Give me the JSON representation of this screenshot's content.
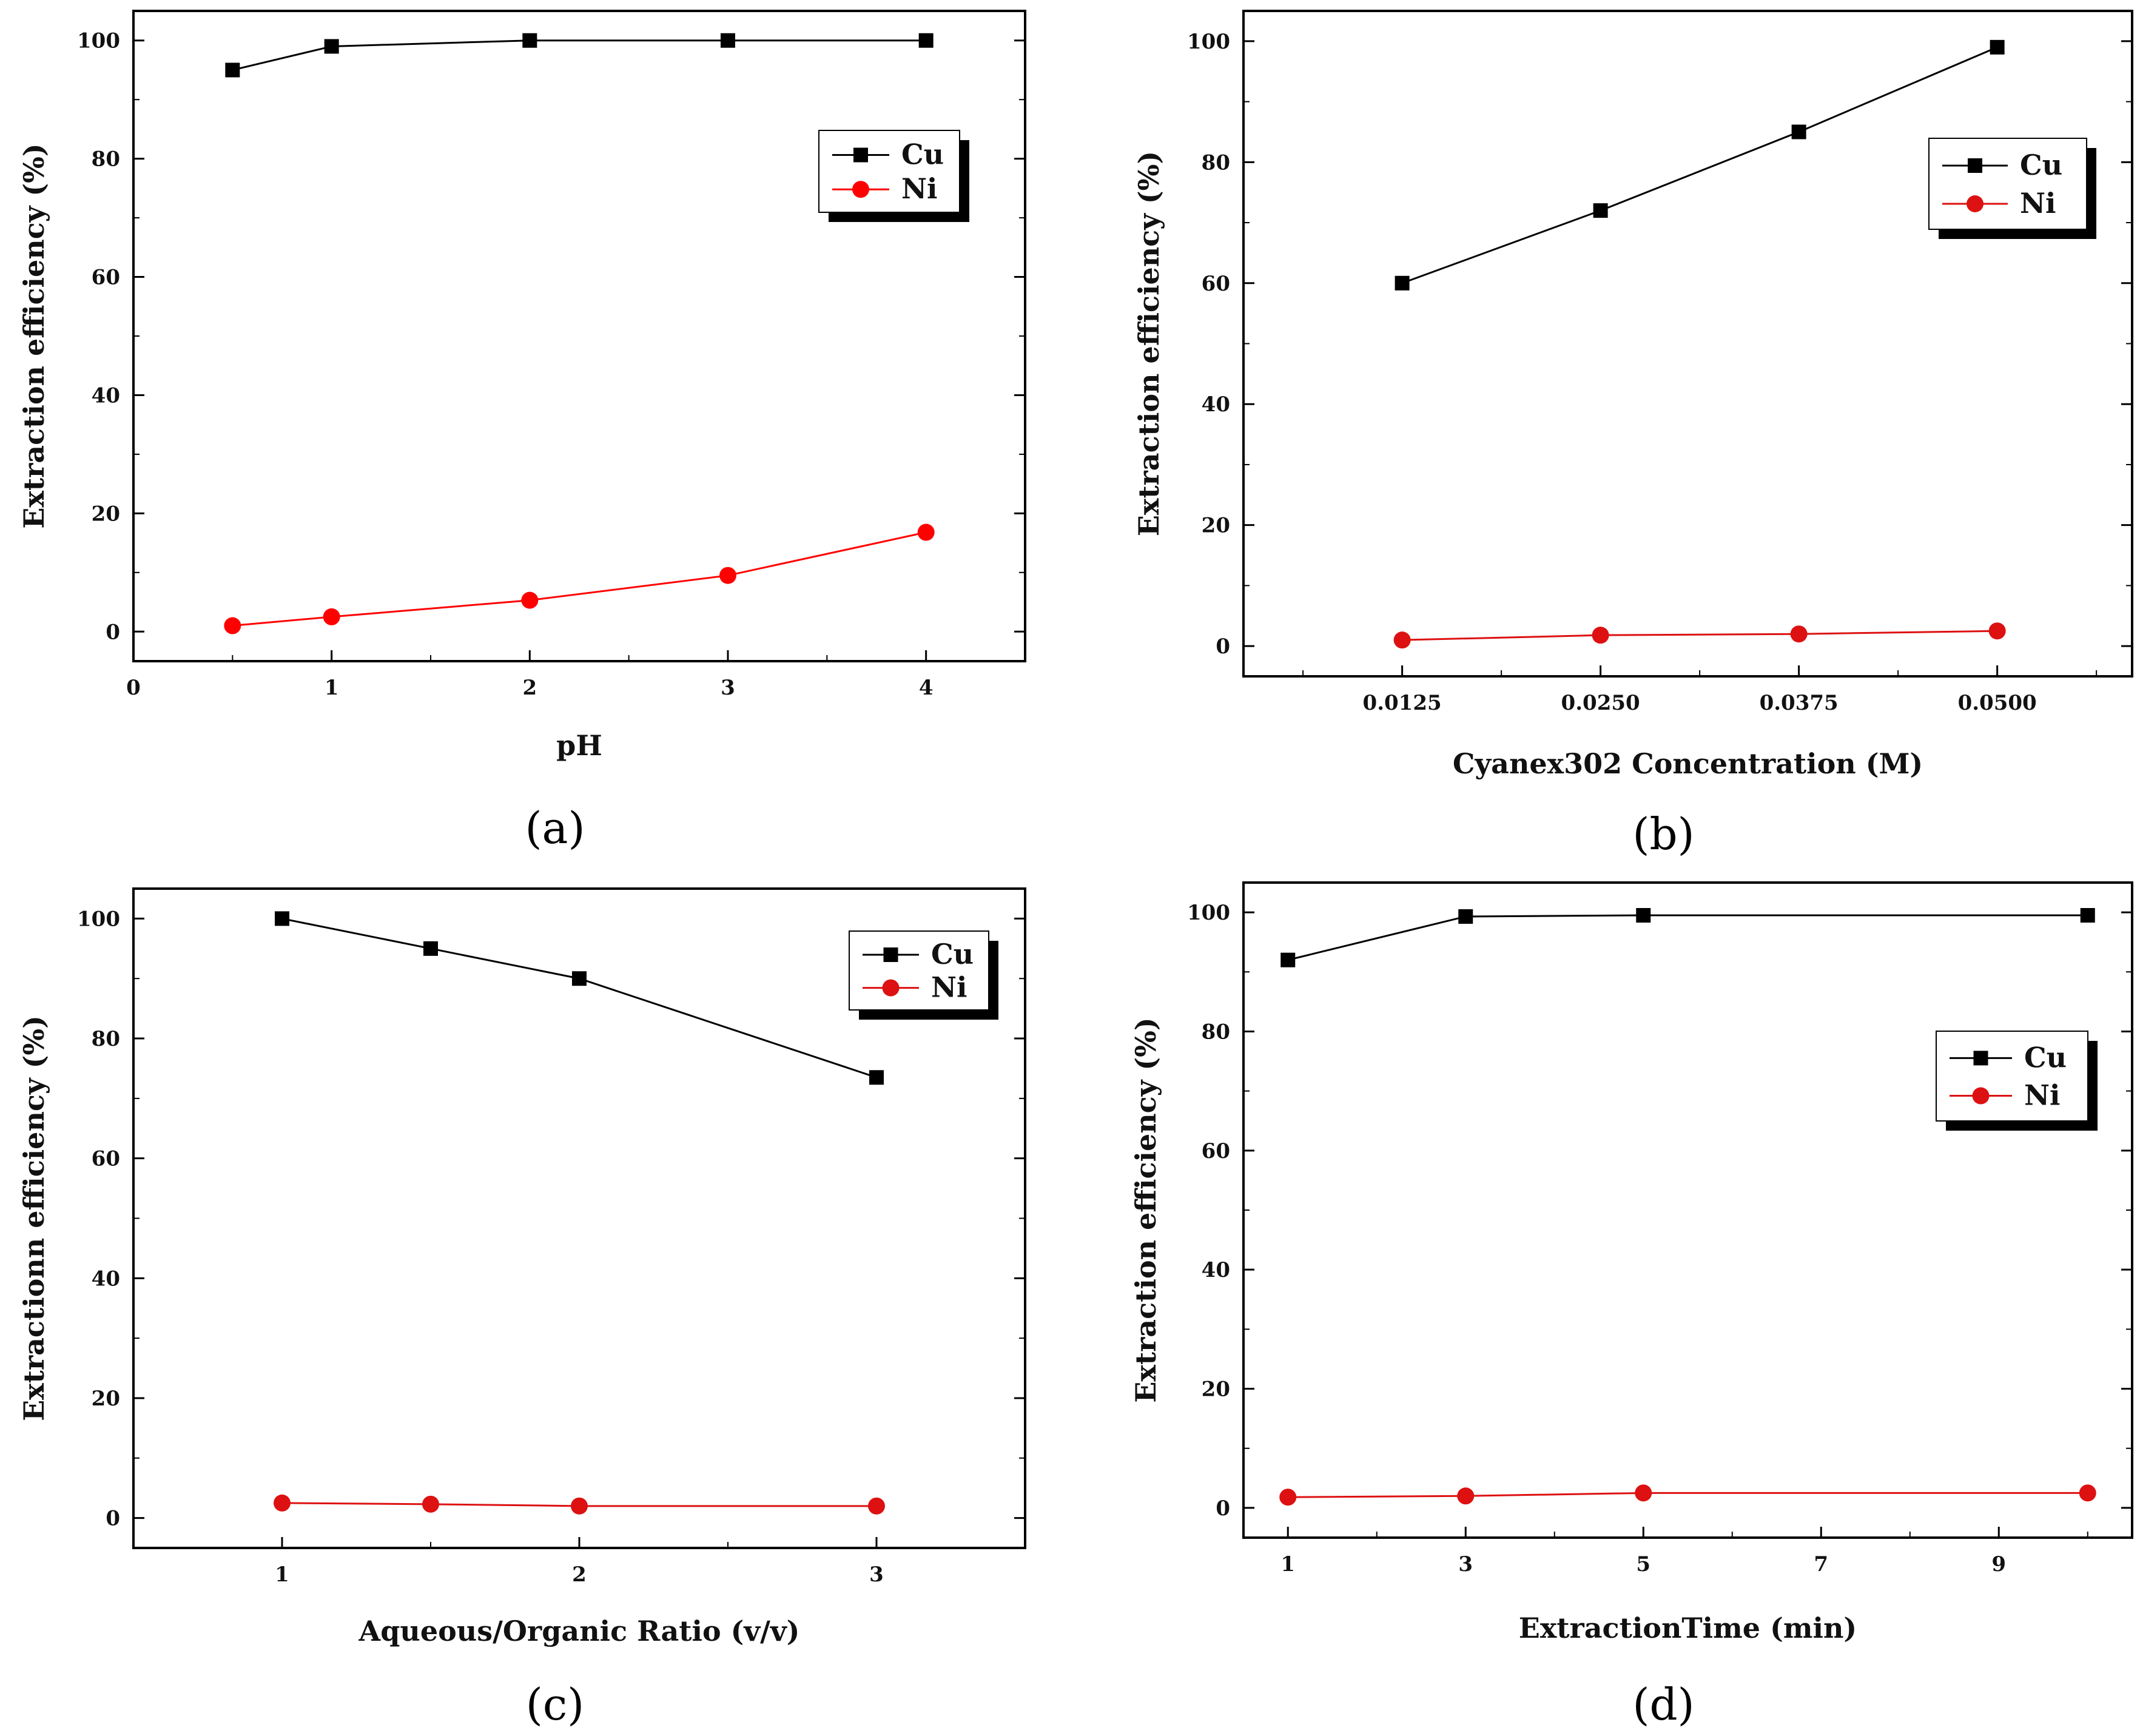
{
  "chart_data": [
    {
      "id": "a",
      "panel_label": "(a)",
      "type": "line",
      "xlabel": "pH",
      "ylabel": "Extraction efficiency (%)",
      "x_ticks": [
        "0",
        "1",
        "2",
        "3",
        "4"
      ],
      "y_ticks": [
        "0",
        "20",
        "40",
        "60",
        "80",
        "100"
      ],
      "xlim": [
        0,
        4.5
      ],
      "ylim": [
        -5,
        105
      ],
      "legend_position": "upper-right",
      "series": [
        {
          "name": "Cu",
          "marker": "square",
          "color": "#000000",
          "x": [
            0.5,
            1,
            2,
            3,
            4
          ],
          "values": [
            95,
            99,
            100,
            100,
            100
          ]
        },
        {
          "name": "Ni",
          "marker": "circle",
          "color": "#ff0000",
          "x": [
            0.5,
            1,
            2,
            3,
            4
          ],
          "values": [
            1,
            2.5,
            5.3,
            9.5,
            16.8
          ]
        }
      ]
    },
    {
      "id": "b",
      "panel_label": "(b)",
      "type": "line",
      "xlabel": "Cyanex302 Concentration (M)",
      "ylabel": "Extraction efficiency (%)",
      "x_ticks": [
        "0.0125",
        "0.0250",
        "0.0375",
        "0.0500"
      ],
      "y_ticks": [
        "0",
        "20",
        "40",
        "60",
        "80",
        "100"
      ],
      "xlim": [
        0.0025,
        0.0585
      ],
      "ylim": [
        -5,
        105
      ],
      "legend_position": "upper-right",
      "series": [
        {
          "name": "Cu",
          "marker": "square",
          "color": "#000000",
          "x": [
            0.0125,
            0.025,
            0.0375,
            0.05
          ],
          "values": [
            60,
            72,
            85,
            99
          ]
        },
        {
          "name": "Ni",
          "marker": "circle",
          "color": "#dd1111",
          "x": [
            0.0125,
            0.025,
            0.0375,
            0.05
          ],
          "values": [
            1,
            1.8,
            2,
            2.5
          ]
        }
      ]
    },
    {
      "id": "c",
      "panel_label": "(c)",
      "type": "line",
      "xlabel": "Aqueous/Organic Ratio (v/v)",
      "ylabel": "Extractionn efficiency (%)",
      "x_ticks": [
        "1",
        "2",
        "3"
      ],
      "y_ticks": [
        "0",
        "20",
        "40",
        "60",
        "80",
        "100"
      ],
      "xlim": [
        0.5,
        3.5
      ],
      "ylim": [
        -5,
        105
      ],
      "legend_position": "upper-right",
      "series": [
        {
          "name": "Cu",
          "marker": "square",
          "color": "#000000",
          "x": [
            1,
            1.5,
            2,
            3
          ],
          "values": [
            100,
            95,
            90,
            73.5
          ]
        },
        {
          "name": "Ni",
          "marker": "circle",
          "color": "#dd1111",
          "x": [
            1,
            1.5,
            2,
            3
          ],
          "values": [
            2.5,
            2.3,
            2,
            2
          ]
        }
      ]
    },
    {
      "id": "d",
      "panel_label": "(d)",
      "type": "line",
      "xlabel": "ExtractionTime (min)",
      "ylabel": "Extraction efficiency (%)",
      "x_ticks": [
        "1",
        "3",
        "5",
        "7",
        "9"
      ],
      "y_ticks": [
        "0",
        "20",
        "40",
        "60",
        "80",
        "100"
      ],
      "xlim": [
        0.5,
        10.5
      ],
      "ylim": [
        -5,
        105
      ],
      "legend_position": "upper-right",
      "series": [
        {
          "name": "Cu",
          "marker": "square",
          "color": "#000000",
          "x": [
            1,
            3,
            5,
            10
          ],
          "values": [
            92,
            99.3,
            99.5,
            99.5
          ]
        },
        {
          "name": "Ni",
          "marker": "circle",
          "color": "#dd1111",
          "x": [
            1,
            3,
            5,
            10
          ],
          "values": [
            1.8,
            2,
            2.5,
            2.5
          ]
        }
      ]
    }
  ]
}
